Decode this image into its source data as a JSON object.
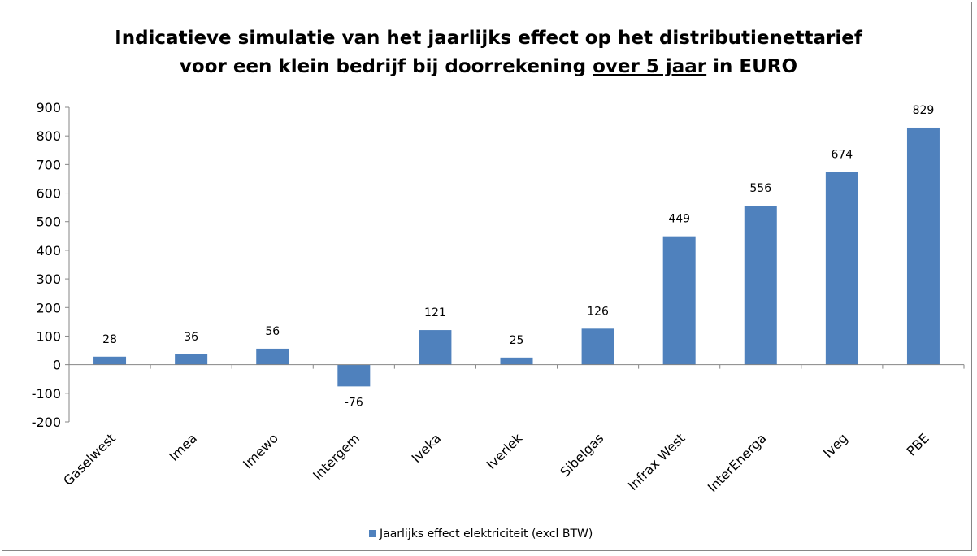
{
  "chart_data": {
    "type": "bar",
    "title_line1": "Indicatieve simulatie van het jaarlijks effect op het distributienettarief",
    "title_line2_before": "voor een klein bedrijf bij doorrekening ",
    "title_line2_underlined": "over 5 jaar",
    "title_line2_after": " in EURO",
    "categories": [
      "Gaselwest",
      "Imea",
      "Imewo",
      "Intergem",
      "Iveka",
      "Iverlek",
      "Sibelgas",
      "Infrax West",
      "InterEnerga",
      "Iveg",
      "PBE"
    ],
    "series": [
      {
        "name": "Jaarlijks effect elektriciteit (excl BTW)",
        "values": [
          28,
          36,
          56,
          -76,
          121,
          25,
          126,
          449,
          556,
          674,
          829
        ],
        "color": "#4f81bd"
      }
    ],
    "data_labels": [
      "28",
      "36",
      "56",
      "-76",
      "121",
      "25",
      "126",
      "449",
      "556",
      "674",
      "829"
    ],
    "ylim": [
      -200,
      900
    ],
    "yticks": [
      -200,
      -100,
      0,
      100,
      200,
      300,
      400,
      500,
      600,
      700,
      800,
      900
    ],
    "ytick_labels": [
      "-200",
      "-100",
      "0",
      "100",
      "200",
      "300",
      "400",
      "500",
      "600",
      "700",
      "800",
      "900"
    ],
    "xlabel": "",
    "ylabel": "",
    "grid": false,
    "legend_position": "bottom",
    "axis_color": "#868686"
  }
}
